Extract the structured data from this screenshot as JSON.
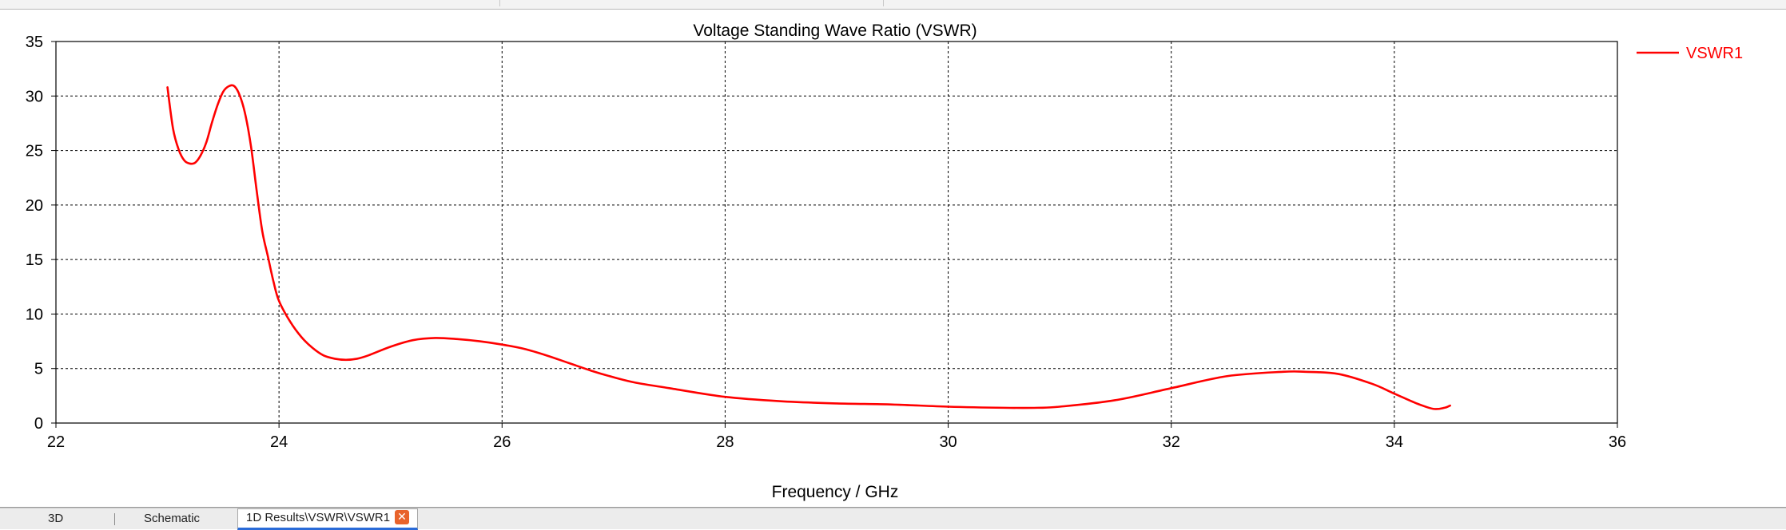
{
  "chart_data": {
    "type": "line",
    "title": "Voltage Standing Wave Ratio (VSWR)",
    "xlabel": "Frequency / GHz",
    "ylabel": "",
    "xlim": [
      22,
      36
    ],
    "ylim": [
      0,
      35
    ],
    "x_ticks": [
      22,
      24,
      26,
      28,
      30,
      32,
      34,
      36
    ],
    "y_ticks": [
      0,
      5,
      10,
      15,
      20,
      25,
      30,
      35
    ],
    "grid": true,
    "legend_position": "top-right",
    "series": [
      {
        "name": "VSWR1",
        "color": "#ff0000",
        "x": [
          23.0,
          23.05,
          23.1,
          23.15,
          23.2,
          23.25,
          23.3,
          23.35,
          23.4,
          23.45,
          23.5,
          23.55,
          23.6,
          23.65,
          23.7,
          23.75,
          23.8,
          23.85,
          23.9,
          23.95,
          24.0,
          24.1,
          24.2,
          24.3,
          24.4,
          24.5,
          24.6,
          24.7,
          24.8,
          25.0,
          25.2,
          25.4,
          25.6,
          25.8,
          26.0,
          26.2,
          26.4,
          26.6,
          26.8,
          27.0,
          27.2,
          27.5,
          28.0,
          28.5,
          29.0,
          29.5,
          30.0,
          30.5,
          30.8,
          31.0,
          31.5,
          32.0,
          32.5,
          33.0,
          33.2,
          33.5,
          33.8,
          34.0,
          34.2,
          34.35,
          34.45,
          34.5
        ],
        "values": [
          30.8,
          27.0,
          25.1,
          24.1,
          23.8,
          23.9,
          24.6,
          25.8,
          27.6,
          29.2,
          30.4,
          30.9,
          30.9,
          30.0,
          28.2,
          25.3,
          21.3,
          17.6,
          15.3,
          13.0,
          11.2,
          9.3,
          7.9,
          6.9,
          6.2,
          5.9,
          5.8,
          5.9,
          6.2,
          7.0,
          7.6,
          7.8,
          7.7,
          7.5,
          7.2,
          6.8,
          6.2,
          5.5,
          4.8,
          4.2,
          3.7,
          3.2,
          2.4,
          2.0,
          1.8,
          1.7,
          1.5,
          1.4,
          1.4,
          1.5,
          2.1,
          3.2,
          4.3,
          4.7,
          4.7,
          4.5,
          3.6,
          2.7,
          1.8,
          1.3,
          1.4,
          1.6
        ]
      }
    ]
  },
  "tabs": {
    "items": [
      "3D",
      "Schematic",
      "1D Results\\VSWR\\VSWR1"
    ],
    "close_icon": "close-icon"
  },
  "colors": {
    "series": "#ff0000",
    "close_button": "#e8632b"
  }
}
